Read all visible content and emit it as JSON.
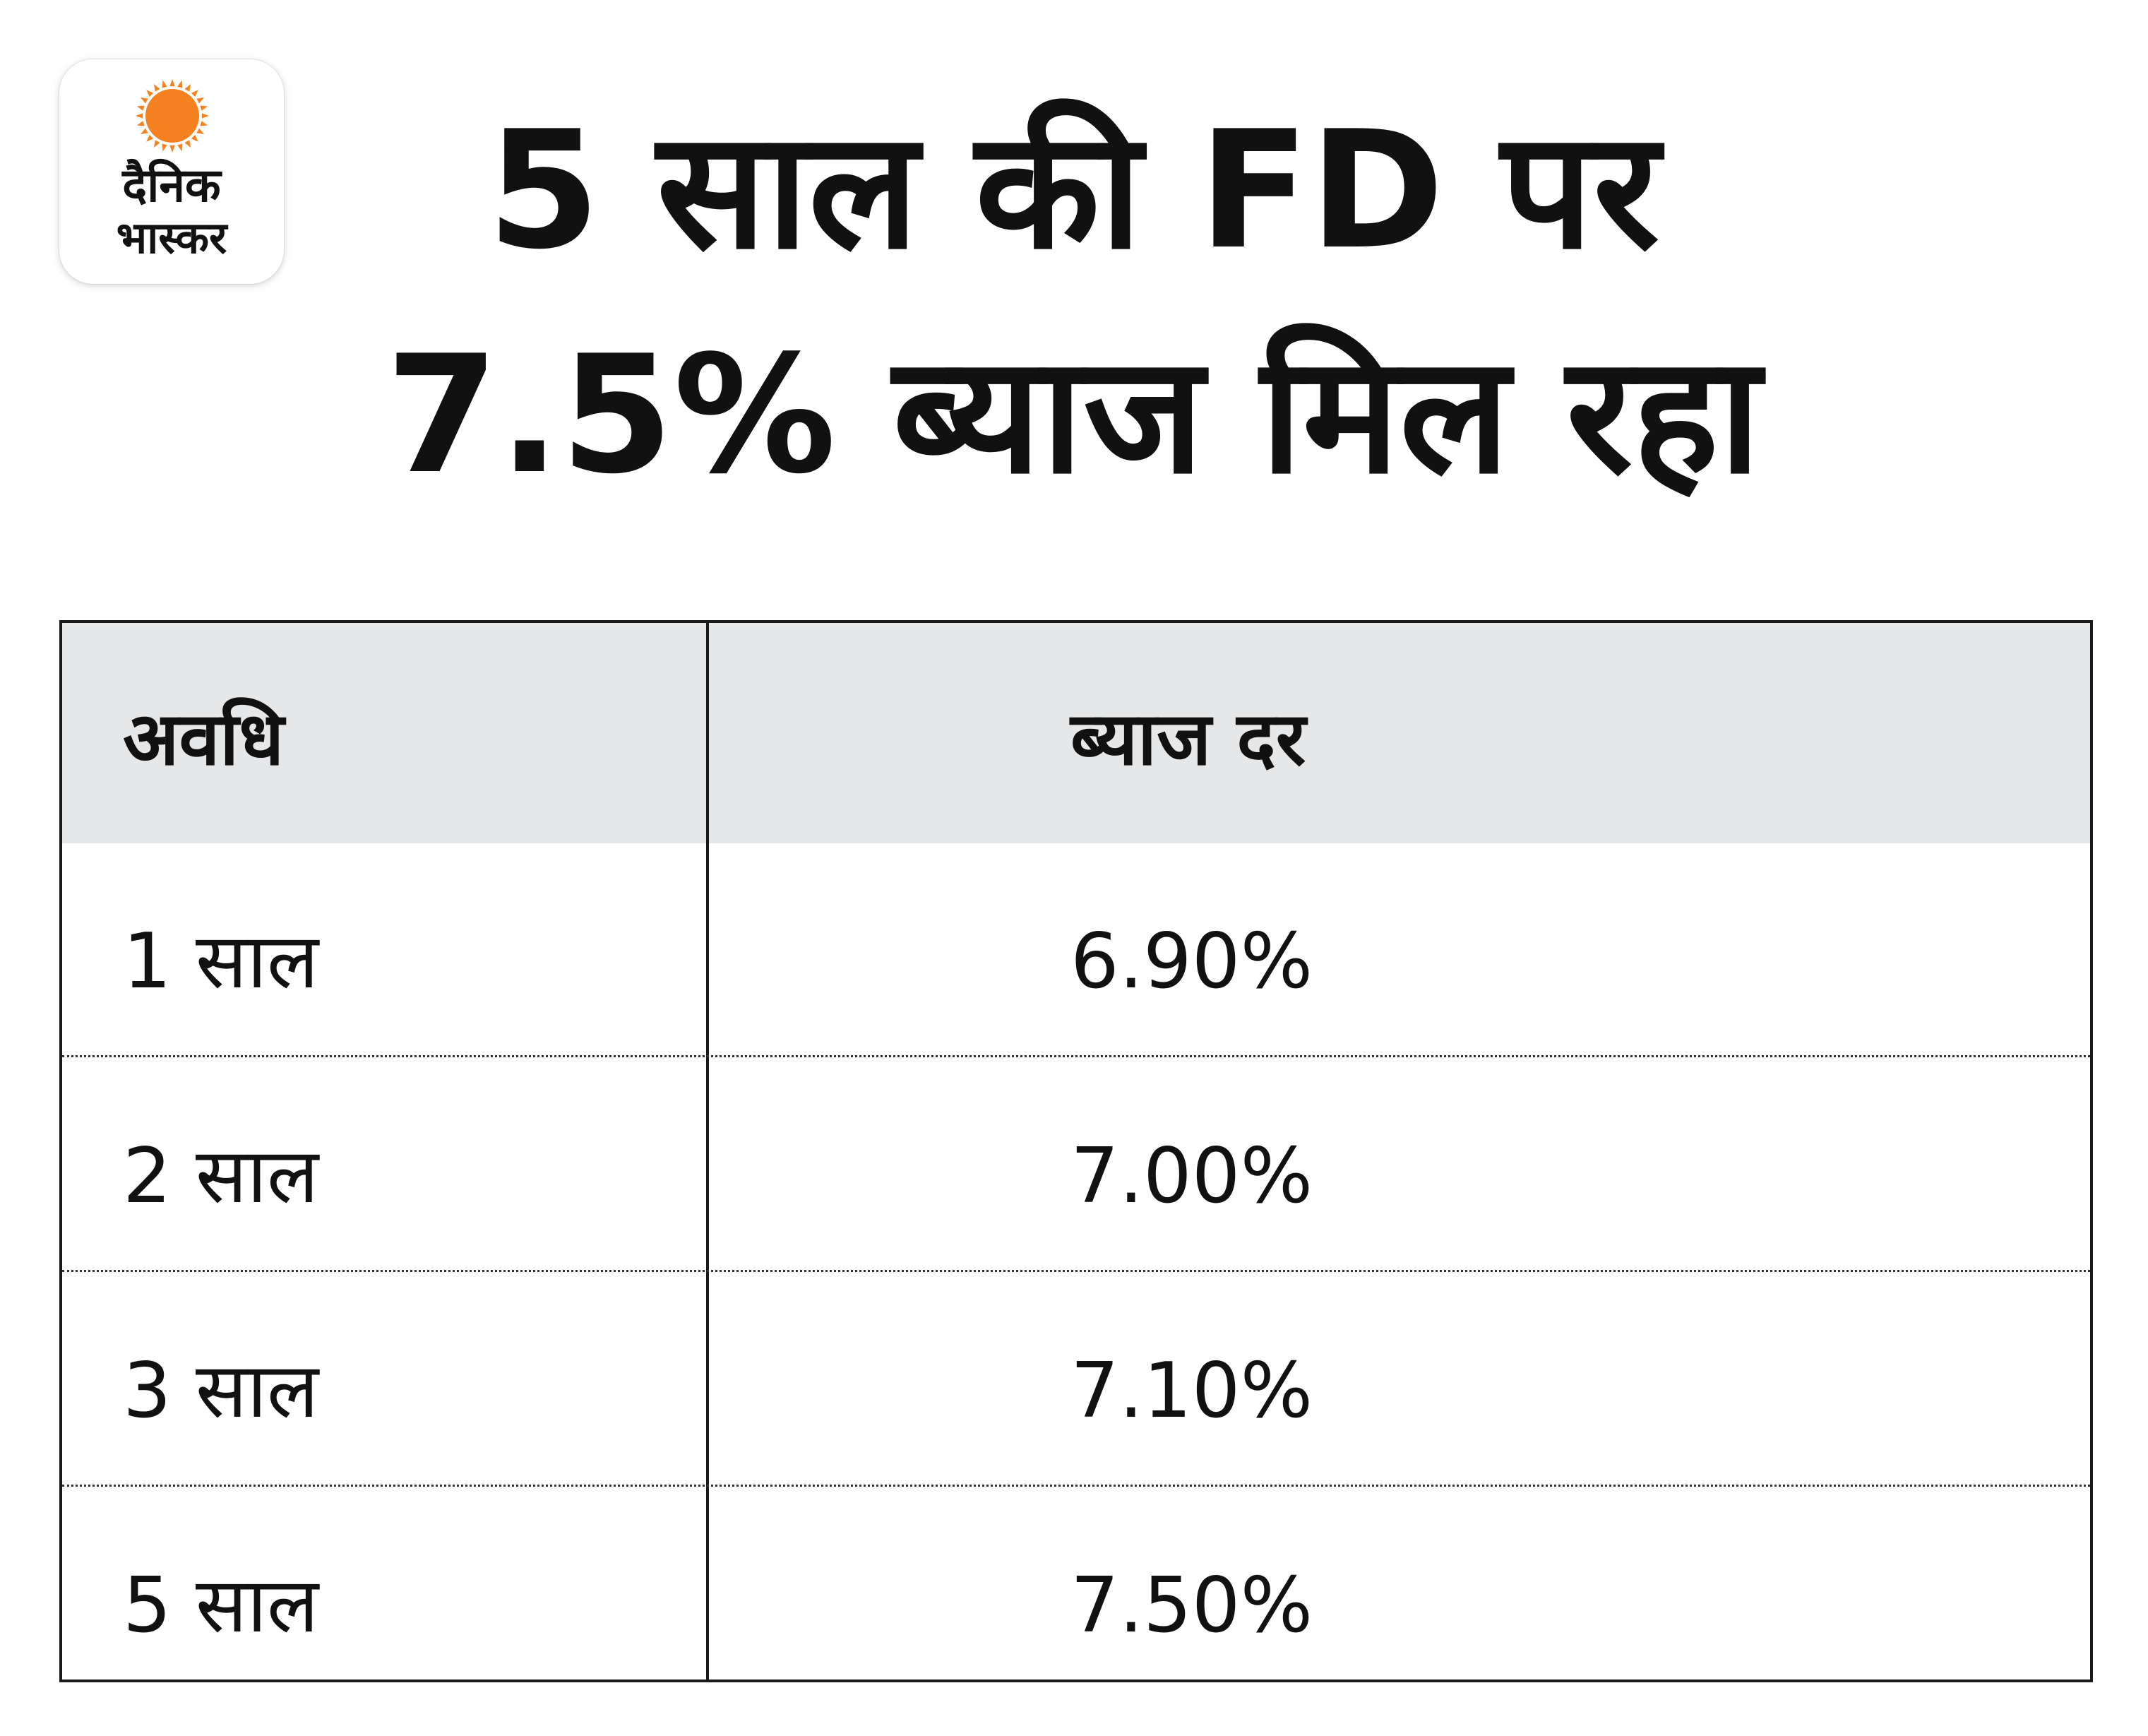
{
  "logo": {
    "line1": "दैनिक",
    "line2": "भास्कर",
    "sun_color": "#f58220"
  },
  "title": {
    "line1": "5 साल की FD पर",
    "line2": "7.5% ब्याज मिल रहा"
  },
  "chart_data": {
    "type": "table",
    "columns": [
      "अवधि",
      "ब्याज दर"
    ],
    "rows": [
      [
        "1 साल",
        "6.90%"
      ],
      [
        "2 साल",
        "7.00%"
      ],
      [
        "3 साल",
        "7.10%"
      ],
      [
        "5 साल",
        "7.50%"
      ]
    ],
    "header_background": "#e6e7e8",
    "border_color": "#1a1a1a"
  }
}
